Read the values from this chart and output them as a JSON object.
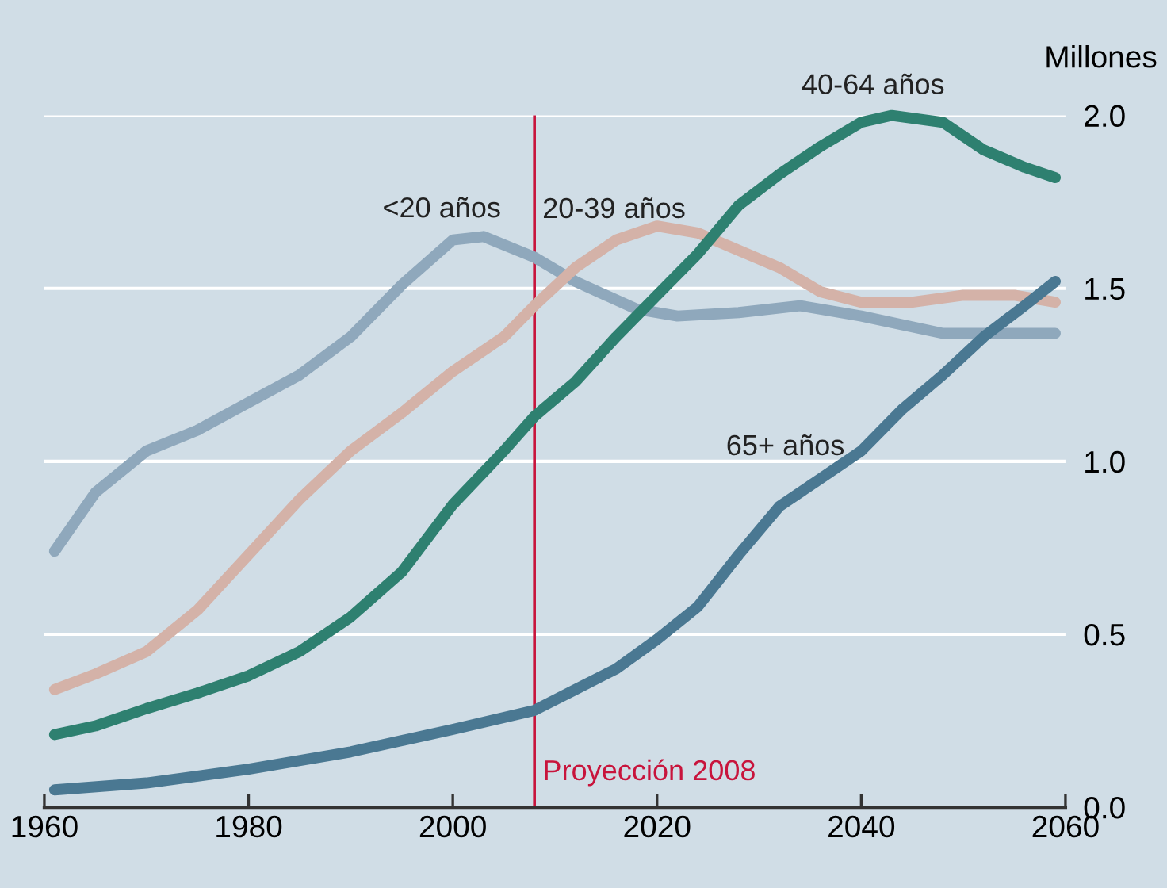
{
  "chart_data": {
    "type": "line",
    "ylabel": "Millones",
    "xlim": [
      1960,
      2060
    ],
    "xticks": [
      1960,
      1980,
      2000,
      2020,
      2040,
      2060
    ],
    "ylim": [
      0,
      2.0
    ],
    "yticks": [
      {
        "value": 0,
        "label": "0.0"
      },
      {
        "value": 0.5,
        "label": "0.5"
      },
      {
        "value": 1,
        "label": "1.0"
      },
      {
        "value": 1.5,
        "label": "1.5"
      },
      {
        "value": 2,
        "label": "2.0"
      }
    ],
    "grid": "y",
    "legend": false,
    "marker": "none",
    "line_style": "solid",
    "ref_lines": [
      {
        "axis": "x",
        "value": 2008,
        "label": "Proyección 2008",
        "color": "#c8143c"
      }
    ],
    "series": [
      {
        "name": "<20 años",
        "color": "#8fa8bc",
        "x": [
          1961,
          1965,
          1970,
          1975,
          1980,
          1985,
          1990,
          1995,
          2000,
          2003,
          2008,
          2012,
          2018,
          2022,
          2028,
          2034,
          2040,
          2048,
          2059
        ],
        "values": [
          0.74,
          0.91,
          1.03,
          1.09,
          1.17,
          1.25,
          1.36,
          1.51,
          1.64,
          1.65,
          1.59,
          1.52,
          1.44,
          1.42,
          1.43,
          1.45,
          1.42,
          1.37,
          1.37
        ]
      },
      {
        "name": "20-39 años",
        "color": "#d4b2a8",
        "x": [
          1961,
          1965,
          1970,
          1975,
          1980,
          1985,
          1990,
          1995,
          2000,
          2005,
          2008,
          2012,
          2016,
          2020,
          2024,
          2028,
          2032,
          2036,
          2040,
          2045,
          2050,
          2055,
          2059
        ],
        "values": [
          0.34,
          0.385,
          0.45,
          0.57,
          0.73,
          0.89,
          1.03,
          1.14,
          1.26,
          1.36,
          1.45,
          1.56,
          1.64,
          1.68,
          1.66,
          1.61,
          1.56,
          1.49,
          1.46,
          1.46,
          1.48,
          1.48,
          1.46
        ]
      },
      {
        "name": "40-64 años",
        "color": "#2e8070",
        "x": [
          1961,
          1965,
          1970,
          1975,
          1980,
          1985,
          1990,
          1995,
          2000,
          2005,
          2008,
          2012,
          2016,
          2020,
          2024,
          2028,
          2032,
          2036,
          2040,
          2043,
          2048,
          2052,
          2056,
          2059
        ],
        "values": [
          0.21,
          0.235,
          0.285,
          0.33,
          0.38,
          0.45,
          0.55,
          0.68,
          0.875,
          1.03,
          1.13,
          1.23,
          1.36,
          1.48,
          1.6,
          1.74,
          1.83,
          1.91,
          1.98,
          2.0,
          1.98,
          1.9,
          1.85,
          1.82
        ]
      },
      {
        "name": "65+ años",
        "color": "#4a7892",
        "x": [
          1961,
          1970,
          1980,
          1990,
          2000,
          2008,
          2012,
          2016,
          2020,
          2024,
          2028,
          2032,
          2036,
          2040,
          2044,
          2048,
          2052,
          2056,
          2059
        ],
        "values": [
          0.05,
          0.07,
          0.11,
          0.16,
          0.225,
          0.28,
          0.34,
          0.4,
          0.485,
          0.58,
          0.73,
          0.87,
          0.95,
          1.03,
          1.15,
          1.25,
          1.36,
          1.45,
          1.52
        ]
      }
    ]
  }
}
